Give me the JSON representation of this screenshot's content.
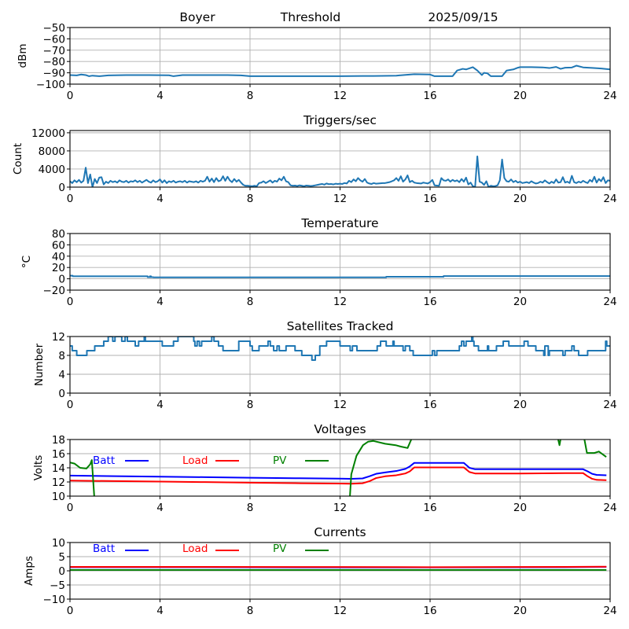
{
  "header": {
    "site": "Boyer",
    "mode": "Threshold",
    "date": "2025/09/15"
  },
  "chart_data": [
    {
      "type": "line",
      "title": "",
      "ylabel": "dBm",
      "xlim": [
        0,
        24
      ],
      "xticks": [
        0,
        4,
        8,
        12,
        16,
        20,
        24
      ],
      "xtick_labels": [
        "0",
        "4",
        "8",
        "12",
        "16",
        "20",
        "24"
      ],
      "ylim": [
        -100,
        -50
      ],
      "yticks": [
        -100,
        -90,
        -80,
        -70,
        -60,
        -50
      ],
      "ytick_labels": [
        "−100",
        "−90",
        "−80",
        "−70",
        "−60",
        "−50"
      ],
      "grid": true,
      "series": [
        {
          "name": "dBm",
          "color": "#1f77b4",
          "x": [
            0,
            0.3,
            0.5,
            0.7,
            0.85,
            1.0,
            1.3,
            1.7,
            2.5,
            3.5,
            4.4,
            4.6,
            5,
            6,
            7,
            7.6,
            8,
            10,
            12,
            13,
            13.5,
            14.5,
            14.8,
            15.3,
            16,
            16.2,
            17.0,
            17.2,
            17.45,
            17.6,
            17.9,
            18.1,
            18.3,
            18.4,
            18.55,
            18.7,
            19.2,
            19.4,
            19.7,
            19.9,
            20.0,
            20.5,
            21.0,
            21.3,
            21.6,
            21.8,
            22.0,
            22.3,
            22.5,
            22.8,
            23.2,
            23.6,
            24
          ],
          "y": [
            -92,
            -92.3,
            -91.5,
            -92,
            -93,
            -92.5,
            -93,
            -92.3,
            -92,
            -92,
            -92.2,
            -93,
            -92,
            -92,
            -92,
            -92.3,
            -93,
            -93,
            -93,
            -92.8,
            -92.8,
            -92.5,
            -92,
            -91.2,
            -91.5,
            -93,
            -93,
            -88,
            -86.5,
            -87,
            -85,
            -88,
            -92,
            -90,
            -90.5,
            -93,
            -93,
            -88,
            -87,
            -85.5,
            -85,
            -85,
            -85.2,
            -85.8,
            -84.8,
            -86.5,
            -85.5,
            -85.3,
            -83.7,
            -85.2,
            -85.7,
            -86.2,
            -87
          ]
        }
      ]
    },
    {
      "type": "line",
      "title": "Triggers/sec",
      "ylabel": "Count",
      "xlim": [
        0,
        24
      ],
      "xticks": [
        0,
        4,
        8,
        12,
        16,
        20,
        24
      ],
      "xtick_labels": [
        "0",
        "4",
        "8",
        "12",
        "16",
        "20",
        "24"
      ],
      "ylim": [
        0,
        12500
      ],
      "yticks": [
        0,
        4000,
        8000,
        12000
      ],
      "ytick_labels": [
        "0",
        "4000",
        "8000",
        "12000"
      ],
      "grid": true,
      "series": [
        {
          "name": "Triggers/sec",
          "color": "#1f77b4",
          "x_start": 0,
          "x_step": 0.1,
          "y": [
            1300,
            900,
            1500,
            1100,
            1600,
            1000,
            1400,
            4300,
            900,
            2800,
            0,
            1800,
            900,
            2100,
            2200,
            600,
            1200,
            900,
            1400,
            1100,
            1300,
            1000,
            1500,
            1200,
            1100,
            1400,
            1000,
            1300,
            1200,
            1500,
            1100,
            1400,
            1000,
            1300,
            1600,
            1200,
            1000,
            1500,
            1100,
            1300,
            1700,
            1000,
            1500,
            900,
            1300,
            1100,
            1400,
            1000,
            1200,
            1300,
            1100,
            1400,
            1000,
            1300,
            1200,
            1100,
            1300,
            1000,
            1400,
            1200,
            1400,
            2300,
            1200,
            1900,
            1100,
            2000,
            1300,
            1500,
            2400,
            1400,
            2300,
            1500,
            1100,
            1800,
            1200,
            1600,
            1000,
            500,
            300,
            300,
            250,
            200,
            300,
            200,
            900,
            1000,
            1300,
            900,
            1200,
            1500,
            1000,
            1400,
            1200,
            1900,
            1500,
            2300,
            1300,
            1100,
            400,
            300,
            350,
            250,
            400,
            300,
            200,
            350,
            300,
            250,
            300,
            400,
            500,
            600,
            700,
            550,
            800,
            650,
            700,
            600,
            750,
            700,
            750,
            700,
            900,
            800,
            1400,
            1100,
            1700,
            1300,
            2000,
            1500,
            1200,
            1800,
            1000,
            800,
            700,
            900,
            750,
            800,
            850,
            900,
            900,
            1000,
            1100,
            1300,
            1500,
            2000,
            1400,
            2400,
            1200,
            1700,
            2600,
            1100,
            1400,
            1000,
            900,
            850,
            800,
            1000,
            900,
            800,
            1100,
            1600,
            400,
            350,
            300,
            2000,
            1500,
            1400,
            1700,
            1200,
            1600,
            1300,
            1500,
            1100,
            1800,
            1200,
            2100,
            600,
            1000,
            200,
            0,
            6800,
            1200,
            1000,
            500,
            1300,
            0,
            300,
            200,
            250,
            400,
            1500,
            6100,
            2000,
            1300,
            1200,
            1700,
            1100,
            1400,
            1000,
            1200,
            900,
            1000,
            1100,
            900,
            1300,
            1000,
            800,
            900,
            1200,
            1000,
            1500,
            1100,
            800,
            1200,
            900,
            1700,
            1000,
            1100,
            2200,
            1000,
            1200,
            900,
            2500,
            1100,
            900,
            1200,
            1000,
            1400,
            1100,
            900,
            1600,
            1200,
            2300,
            1000,
            1800,
            1300,
            2200,
            900,
            1500,
            1400
          ]
        }
      ]
    },
    {
      "type": "line",
      "title": "Temperature",
      "ylabel": "°C",
      "xlim": [
        0,
        24
      ],
      "xticks": [
        0,
        4,
        8,
        12,
        16,
        20,
        24
      ],
      "xtick_labels": [
        "0",
        "4",
        "8",
        "12",
        "16",
        "20",
        "24"
      ],
      "ylim": [
        -20,
        80
      ],
      "yticks": [
        -20,
        0,
        20,
        40,
        60,
        80
      ],
      "ytick_labels": [
        "−20",
        "0",
        "20",
        "40",
        "60",
        "80"
      ],
      "grid": true,
      "series": [
        {
          "name": "Temperature",
          "color": "#1f77b4",
          "step": "post",
          "x": [
            0,
            0.12,
            3.45,
            3.55,
            3.6,
            3.7,
            14.05,
            16.6
          ],
          "y": [
            5.5,
            4.5,
            3.0,
            4.5,
            3.0,
            2.6,
            3.6,
            4.8
          ]
        }
      ]
    },
    {
      "type": "line",
      "title": "Satellites Tracked",
      "ylabel": "Number",
      "xlim": [
        0,
        24
      ],
      "xticks": [
        0,
        4,
        8,
        12,
        16,
        20,
        24
      ],
      "xtick_labels": [
        "0",
        "4",
        "8",
        "12",
        "16",
        "20",
        "24"
      ],
      "ylim": [
        0,
        12
      ],
      "yticks": [
        0,
        4,
        8,
        12
      ],
      "ytick_labels": [
        "0",
        "4",
        "8",
        "12"
      ],
      "grid": true,
      "series": [
        {
          "name": "Satellites",
          "color": "#1f77b4",
          "step": "post",
          "x": [
            0,
            0.1,
            0.3,
            0.75,
            1.1,
            1.5,
            1.7,
            1.9,
            2.0,
            2.3,
            2.45,
            2.55,
            2.9,
            3.05,
            3.3,
            3.35,
            4.1,
            4.6,
            4.8,
            5.5,
            5.55,
            5.65,
            5.75,
            5.85,
            5.95,
            6.3,
            6.4,
            6.6,
            6.8,
            7.5,
            8.0,
            8.1,
            8.4,
            8.8,
            8.9,
            9.05,
            9.2,
            9.3,
            9.6,
            10.0,
            10.3,
            10.75,
            10.9,
            11.1,
            11.4,
            12.0,
            12.45,
            12.55,
            12.75,
            13.65,
            13.8,
            14.05,
            14.35,
            14.4,
            14.8,
            14.9,
            15.1,
            15.25,
            16.1,
            16.2,
            16.3,
            17.3,
            17.4,
            17.5,
            17.6,
            17.85,
            17.9,
            17.95,
            18.15,
            18.55,
            18.6,
            18.95,
            19.25,
            19.5,
            20.18,
            20.35,
            20.7,
            21.05,
            21.1,
            21.25,
            21.3,
            21.9,
            22.0,
            22.3,
            22.4,
            22.6,
            23.0,
            23.8,
            23.85
          ],
          "y": [
            10,
            9,
            8,
            9,
            10,
            11,
            12,
            11,
            12,
            11,
            12,
            11,
            10,
            11,
            12,
            11,
            10,
            11,
            12,
            11,
            10,
            11,
            10,
            11,
            11,
            12,
            11,
            10,
            9,
            11,
            10,
            9,
            10,
            11,
            10,
            9,
            10,
            9,
            10,
            9,
            8,
            7,
            8,
            10,
            11,
            10,
            9,
            10,
            9,
            10,
            11,
            10,
            11,
            10,
            9,
            10,
            9,
            8,
            9,
            8,
            9,
            10,
            11,
            10,
            11,
            12,
            11,
            10,
            9,
            10,
            9,
            10,
            11,
            10,
            11,
            10,
            9,
            8,
            10,
            8,
            9,
            8,
            9,
            10,
            9,
            8,
            9,
            11,
            10
          ]
        }
      ]
    },
    {
      "type": "line",
      "title": "Voltages",
      "ylabel": "Volts",
      "xlim": [
        0,
        24
      ],
      "xticks": [
        0,
        4,
        8,
        12,
        16,
        20,
        24
      ],
      "xtick_labels": [
        "0",
        "4",
        "8",
        "12",
        "16",
        "20",
        "24"
      ],
      "ylim": [
        10,
        18
      ],
      "yticks": [
        10,
        12,
        14,
        16,
        18
      ],
      "ytick_labels": [
        "10",
        "12",
        "14",
        "16",
        "18"
      ],
      "grid": true,
      "legend": [
        {
          "label": "Batt",
          "color": "#0000ff"
        },
        {
          "label": "Load",
          "color": "#ff0000"
        },
        {
          "label": "PV",
          "color": "#008000"
        }
      ],
      "legend_position": "top-left",
      "series": [
        {
          "name": "Batt",
          "color": "#0000ff",
          "x": [
            0,
            2,
            4,
            6,
            8,
            10,
            12,
            12.5,
            13.0,
            13.3,
            13.6,
            14.0,
            14.5,
            14.9,
            15.1,
            15.3,
            17.5,
            17.75,
            18,
            20,
            22,
            22.8,
            23.0,
            23.2,
            23.4,
            23.8
          ],
          "y": [
            12.9,
            12.82,
            12.75,
            12.68,
            12.6,
            12.53,
            12.47,
            12.45,
            12.5,
            12.8,
            13.15,
            13.35,
            13.55,
            13.85,
            14.2,
            14.7,
            14.7,
            14.0,
            13.8,
            13.8,
            13.8,
            13.8,
            13.5,
            13.15,
            13.0,
            12.95
          ]
        },
        {
          "name": "Load",
          "color": "#ff0000",
          "x": [
            0,
            2,
            4,
            6,
            8,
            10,
            12,
            12.5,
            13.0,
            13.3,
            13.6,
            14.0,
            14.5,
            14.9,
            15.1,
            15.3,
            17.5,
            17.75,
            18,
            20,
            22,
            22.8,
            23.0,
            23.2,
            23.4,
            23.8
          ],
          "y": [
            12.2,
            12.12,
            12.05,
            11.98,
            11.9,
            11.83,
            11.78,
            11.75,
            11.82,
            12.1,
            12.55,
            12.8,
            12.95,
            13.2,
            13.5,
            14.05,
            14.05,
            13.4,
            13.2,
            13.2,
            13.25,
            13.25,
            12.8,
            12.45,
            12.3,
            12.25
          ]
        },
        {
          "name": "PV",
          "color": "#008000",
          "x": [
            0,
            0.2,
            0.45,
            0.73,
            0.9,
            0.97,
            1.12,
            12.4,
            12.5,
            12.73,
            13.02,
            13.25,
            13.48,
            14.0,
            14.47,
            14.7,
            15.0,
            15.3,
            21.62,
            21.75,
            21.85,
            22.8,
            22.97,
            23.3,
            23.5,
            23.8
          ],
          "y": [
            14.75,
            14.6,
            14.0,
            13.9,
            14.5,
            15.1,
            8.0,
            8.0,
            13.1,
            15.7,
            17.2,
            17.7,
            17.8,
            17.4,
            17.2,
            17.0,
            16.8,
            19.0,
            19.0,
            17.2,
            19.0,
            19.0,
            16.1,
            16.1,
            16.3,
            15.6
          ]
        }
      ]
    },
    {
      "type": "line",
      "title": "Currents",
      "ylabel": "Amps",
      "xlim": [
        0,
        24
      ],
      "xticks": [
        0,
        4,
        8,
        12,
        16,
        20,
        24
      ],
      "xtick_labels": [
        "0",
        "4",
        "8",
        "12",
        "16",
        "20",
        "24"
      ],
      "ylim": [
        -10,
        10
      ],
      "yticks": [
        -10,
        -5,
        0,
        5,
        10
      ],
      "ytick_labels": [
        "−10",
        "−5",
        "0",
        "5",
        "10"
      ],
      "grid": true,
      "legend": [
        {
          "label": "Batt",
          "color": "#0000ff"
        },
        {
          "label": "Load",
          "color": "#ff0000"
        },
        {
          "label": "PV",
          "color": "#008000"
        }
      ],
      "legend_position": "top-left",
      "series": [
        {
          "name": "Batt",
          "color": "#0000ff",
          "x": [
            0,
            6,
            12,
            16,
            22,
            23.8
          ],
          "y": [
            1.3,
            1.3,
            1.2,
            1.2,
            1.3,
            1.4
          ]
        },
        {
          "name": "Load",
          "color": "#ff0000",
          "x": [
            0,
            6,
            12,
            16,
            22,
            23.8
          ],
          "y": [
            1.4,
            1.4,
            1.35,
            1.3,
            1.4,
            1.45
          ]
        },
        {
          "name": "PV",
          "color": "#008000",
          "x": [
            0,
            23.8
          ],
          "y": [
            0.3,
            0.3
          ]
        }
      ]
    }
  ]
}
